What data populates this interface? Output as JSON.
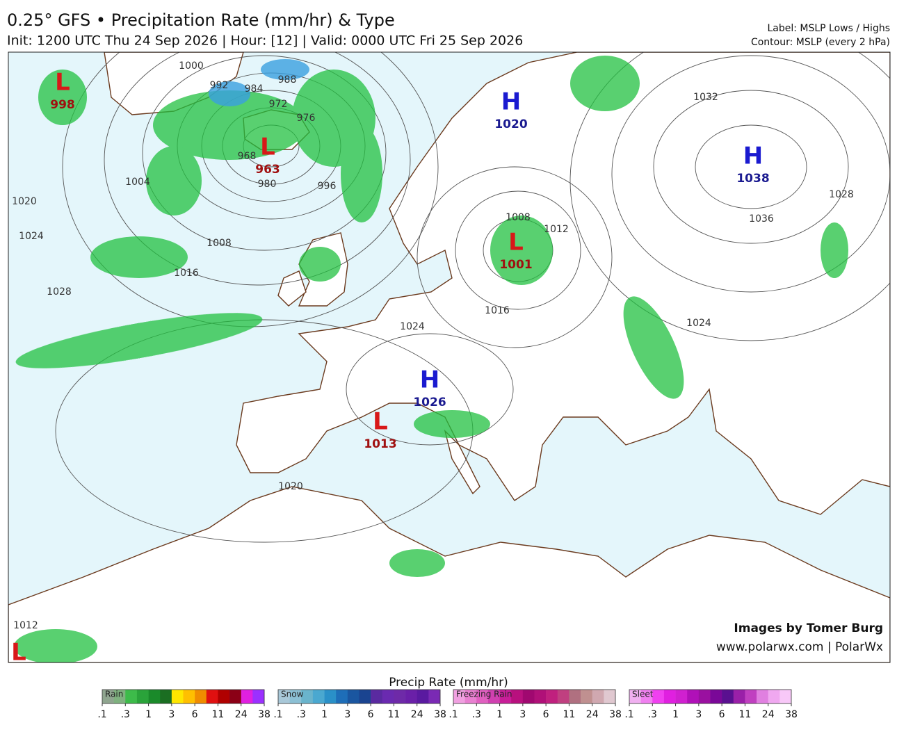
{
  "header": {
    "title": "0.25° GFS • Precipitation Rate (mm/hr) & Type",
    "subtitle": "Init: 1200 UTC Thu 24 Sep 2026 | Hour: [12] | Valid: 0000 UTC Fri 25 Sep 2026",
    "label_note": "Label: MSLP Lows / Highs",
    "contour_note": "Contour: MSLP (every 2 hPa)"
  },
  "map": {
    "pressure_centers": [
      {
        "type": "L",
        "value": "998"
      },
      {
        "type": "L",
        "value": "963"
      },
      {
        "type": "H",
        "value": "1020"
      },
      {
        "type": "H",
        "value": "1038"
      },
      {
        "type": "L",
        "value": "1001"
      },
      {
        "type": "H",
        "value": "1026"
      },
      {
        "type": "L",
        "value": "1013"
      },
      {
        "type": "L"
      }
    ],
    "isobar_labels": [
      "1000",
      "992",
      "984",
      "988",
      "972",
      "976",
      "968",
      "980",
      "996",
      "1004",
      "1020",
      "1024",
      "1028",
      "1008",
      "1016",
      "1008",
      "1012",
      "1016",
      "1024",
      "1032",
      "1036",
      "1028",
      "1024",
      "1020",
      "1012"
    ],
    "credit": "Images by Tomer Burg",
    "website": "www.polarwx.com | PolarWx"
  },
  "legend": {
    "title": "Precip Rate (mm/hr)",
    "ticks": [
      ".1",
      ".3",
      "1",
      "3",
      "6",
      "11",
      "24",
      "38"
    ],
    "bars": [
      {
        "name": "Rain",
        "colors": [
          "#8fa58f",
          "#7fb17f",
          "#3dbb4a",
          "#2aa33a",
          "#1a8a2a",
          "#1b6e22",
          "#ffe600",
          "#ffbf00",
          "#f08c00",
          "#e01010",
          "#b00000",
          "#8b0016",
          "#e020e0",
          "#9b30ff"
        ]
      },
      {
        "name": "Snow",
        "colors": [
          "#a9c8d8",
          "#8cc0d4",
          "#6ab4cc",
          "#4aa8d0",
          "#2a90c8",
          "#1e6eb8",
          "#1a56a0",
          "#1a4490",
          "#5a2aa0",
          "#6a2ab0",
          "#6e2aa8",
          "#6a20a8",
          "#5a1aa0",
          "#7a2ab4"
        ]
      },
      {
        "name": "Freezing Rain",
        "colors": [
          "#f0a0e0",
          "#e880d0",
          "#e060c0",
          "#d040b0",
          "#c81e98",
          "#b8107e",
          "#a00870",
          "#b01078",
          "#c0207e",
          "#c04080",
          "#b07080",
          "#c09090",
          "#d0a8b0",
          "#e0c8d0"
        ]
      },
      {
        "name": "Sleet",
        "colors": [
          "#f0b0f0",
          "#f080f0",
          "#f040f0",
          "#e020e0",
          "#d020d0",
          "#b010b8",
          "#9a10a0",
          "#7a0898",
          "#5a1090",
          "#9a20a8",
          "#c040c0",
          "#e080e0",
          "#f0a8f0",
          "#f8c8f8"
        ]
      }
    ]
  }
}
